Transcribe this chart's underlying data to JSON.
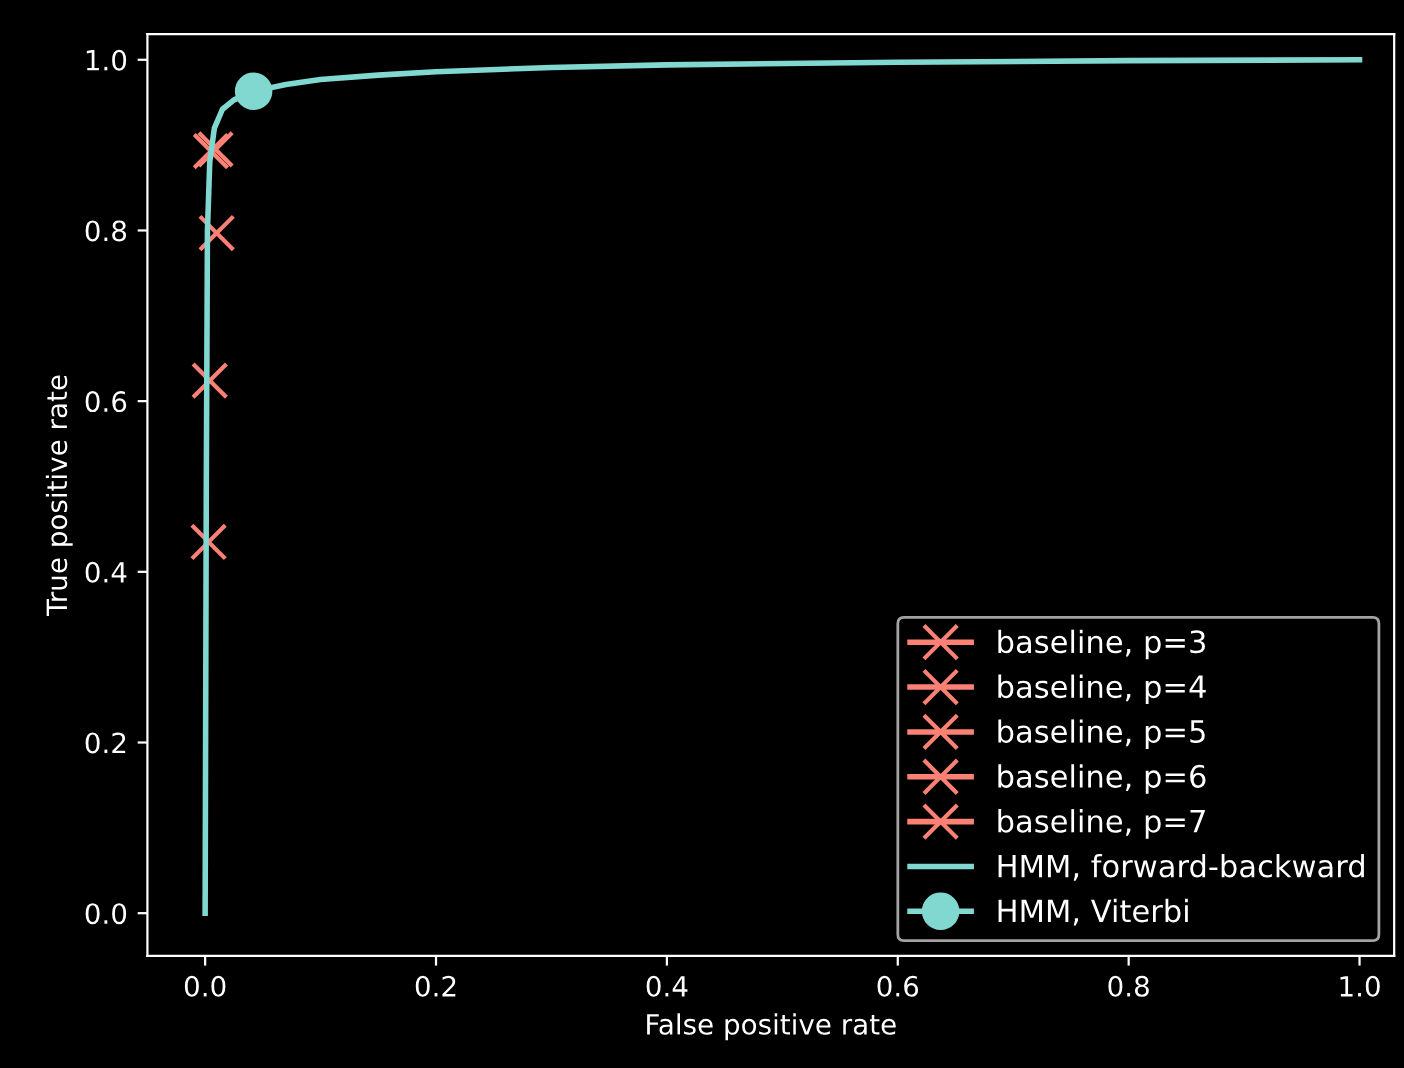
{
  "chart_data": {
    "type": "line",
    "xlabel": "False positive rate",
    "ylabel": "True positive rate",
    "xlim": [
      -0.05,
      1.03
    ],
    "ylim": [
      -0.05,
      1.03
    ],
    "xticks": [
      {
        "value": 0,
        "label": "0.0"
      },
      0.2,
      0.4,
      0.6,
      0.8,
      {
        "value": 1,
        "label": "1.0"
      }
    ],
    "yticks": [
      {
        "value": 0,
        "label": "0.0"
      },
      0.2,
      0.4,
      0.6,
      0.8,
      {
        "value": 1,
        "label": "1.0"
      }
    ],
    "grid": false,
    "legend": "bottom right",
    "series": [
      {
        "name": "baseline, p=3",
        "color": "#fa8174",
        "marker": "cross",
        "x": [
          0.003
        ],
        "values": [
          0.435
        ]
      },
      {
        "name": "baseline, p=4",
        "color": "#fa8174",
        "marker": "cross",
        "x": [
          0.004
        ],
        "values": [
          0.624
        ]
      },
      {
        "name": "baseline, p=5",
        "color": "#fa8174",
        "marker": "cross",
        "x": [
          0.01
        ],
        "values": [
          0.797
        ]
      },
      {
        "name": "baseline, p=6",
        "color": "#fa8174",
        "marker": "cross",
        "x": [
          0.005
        ],
        "values": [
          0.893
        ]
      },
      {
        "name": "baseline, p=7",
        "color": "#fa8174",
        "marker": "cross",
        "x": [
          0.009
        ],
        "values": [
          0.895
        ]
      },
      {
        "name": "HMM, forward-backward",
        "color": "#81d8d0",
        "marker": "none",
        "x": [
          0,
          0.001,
          0.002,
          0.004,
          0.008,
          0.015,
          0.025,
          0.042,
          0.07,
          0.1,
          0.15,
          0.2,
          0.3,
          0.4,
          0.6,
          0.8,
          1.0
        ],
        "values": [
          0,
          0.5,
          0.8,
          0.88,
          0.92,
          0.942,
          0.953,
          0.963,
          0.971,
          0.977,
          0.982,
          0.986,
          0.991,
          0.994,
          0.997,
          0.999,
          1.0
        ]
      },
      {
        "name": "HMM, Viterbi",
        "color": "#81d8d0",
        "marker": "circle",
        "x": [
          0.042
        ],
        "values": [
          0.963
        ]
      }
    ]
  }
}
